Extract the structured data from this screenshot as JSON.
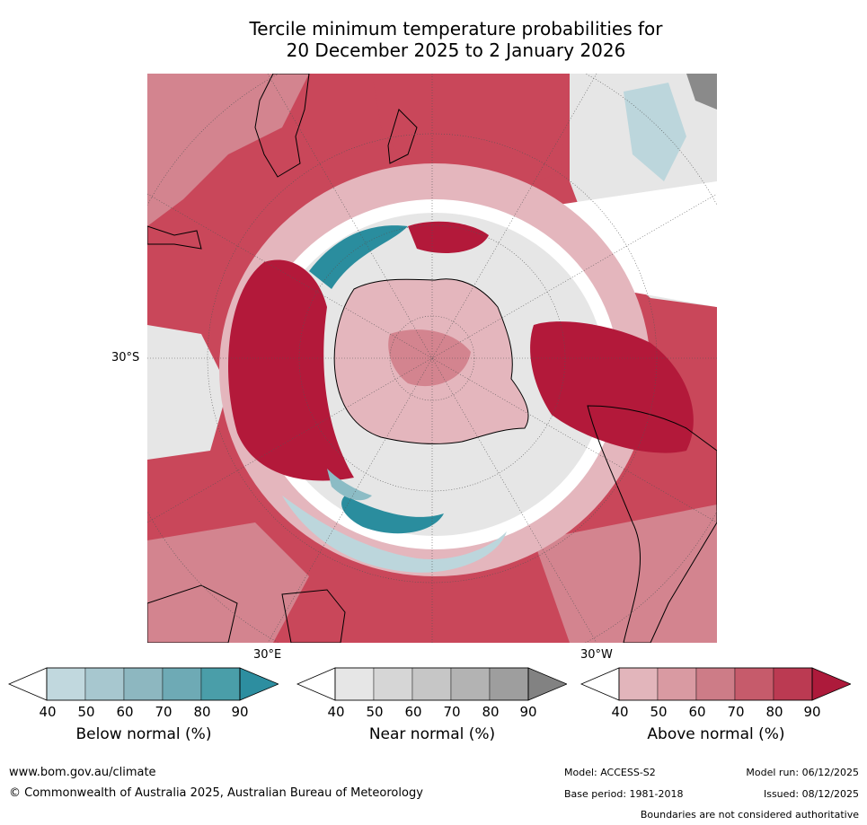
{
  "title_line1": "Tercile minimum temperature probabilities for",
  "title_line2": "20 December 2025 to 2 January 2026",
  "map": {
    "projection": "south-polar-stereographic",
    "lat_label": "30°S",
    "lon_label_left": "30°E",
    "lon_label_right": "30°W",
    "colors": {
      "below_40": "#bcd6dc",
      "below_70": "#8cbcc5",
      "below_90": "#2a8d9e",
      "near_40": "#e6e6e6",
      "near_60": "#cfcfcf",
      "near_90": "#8a8a8a",
      "above_40": "#e4b6bd",
      "above_60": "#d3848f",
      "above_80": "#c9475a",
      "above_90": "#b3193a"
    }
  },
  "colorbars": [
    {
      "name": "below",
      "label": "Below normal (%)",
      "ticks": [
        "40",
        "50",
        "60",
        "70",
        "80",
        "90"
      ],
      "colors": [
        "#c1d8de",
        "#a7c7cf",
        "#8db7c0",
        "#6eaab5",
        "#4a9ea9",
        "#2d8ea0"
      ]
    },
    {
      "name": "near",
      "label": "Near normal (%)",
      "ticks": [
        "40",
        "50",
        "60",
        "70",
        "80",
        "90"
      ],
      "colors": [
        "#e6e6e6",
        "#d6d6d6",
        "#c6c6c6",
        "#b3b3b3",
        "#9e9e9e",
        "#828282"
      ]
    },
    {
      "name": "above",
      "label": "Above normal (%)",
      "ticks": [
        "40",
        "50",
        "60",
        "70",
        "80",
        "90"
      ],
      "colors": [
        "#e2b5bb",
        "#d99aa2",
        "#cd7c87",
        "#c65b6b",
        "#bb3a52",
        "#ad1a3b"
      ]
    }
  ],
  "footer": {
    "website": "www.bom.gov.au/climate",
    "copyright": "© Commonwealth of Australia 2025, Australian Bureau of Meteorology",
    "model": "Model: ACCESS-S2",
    "base_period": "Base period: 1981-2018",
    "model_run": "Model run: 06/12/2025",
    "issued": "Issued: 08/12/2025",
    "disclaimer": "Boundaries are not considered authoritative"
  }
}
